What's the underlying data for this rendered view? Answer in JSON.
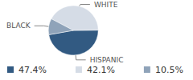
{
  "chart_data": {
    "type": "pie",
    "categories": [
      "HISPANIC",
      "WHITE",
      "BLACK"
    ],
    "values": [
      47.4,
      42.1,
      10.5
    ],
    "value_labels": [
      "47.4%",
      "42.1%",
      "10.5%"
    ],
    "colors": [
      "#325a82",
      "#d5dce6",
      "#8fa3b9"
    ],
    "legend": "bottom"
  }
}
